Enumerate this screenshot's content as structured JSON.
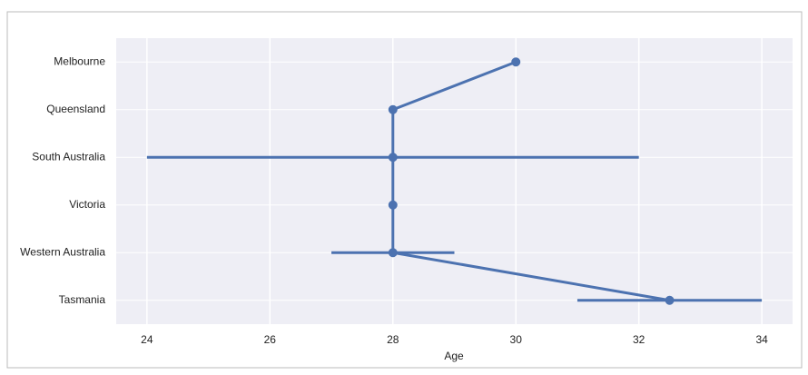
{
  "chart_data": {
    "type": "pointplot",
    "categories": [
      "Melbourne",
      "Queensland",
      "South Australia",
      "Victoria",
      "Western Australia",
      "Tasmania"
    ],
    "values": [
      30,
      28,
      28,
      28,
      28,
      32.5
    ],
    "ci": [
      null,
      null,
      [
        24,
        32
      ],
      null,
      [
        27,
        29
      ],
      [
        31,
        34
      ]
    ],
    "color": "#4c72b0",
    "xlabel": "Age",
    "xlim": [
      23.5,
      34.5
    ],
    "xticks": [
      24,
      26,
      28,
      30,
      32,
      34
    ],
    "grid": true
  }
}
